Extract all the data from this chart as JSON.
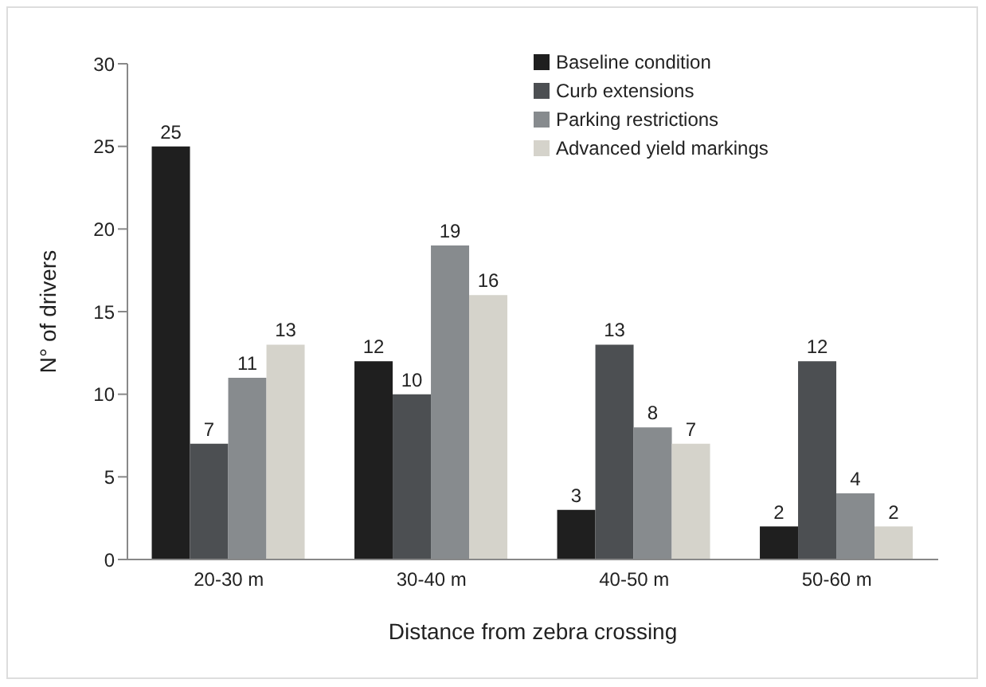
{
  "chart_data": {
    "type": "bar",
    "xlabel": "Distance from zebra crossing",
    "ylabel": "N° of drivers",
    "categories": [
      "20-30 m",
      "30-40 m",
      "40-50 m",
      "50-60 m"
    ],
    "series": [
      {
        "name": "Baseline condition",
        "color": "#1f1f1f",
        "values": [
          25,
          12,
          3,
          2
        ]
      },
      {
        "name": "Curb extensions",
        "color": "#4c4f52",
        "values": [
          7,
          10,
          13,
          12
        ]
      },
      {
        "name": "Parking restrictions",
        "color": "#878b8e",
        "values": [
          11,
          19,
          8,
          4
        ]
      },
      {
        "name": "Advanced yield markings",
        "color": "#d5d3cb",
        "values": [
          13,
          16,
          7,
          2
        ]
      }
    ],
    "ylim": [
      0,
      30
    ],
    "yticks": [
      0,
      5,
      10,
      15,
      20,
      25,
      30
    ],
    "grid": false,
    "legend": "top right",
    "data_labels": true
  }
}
